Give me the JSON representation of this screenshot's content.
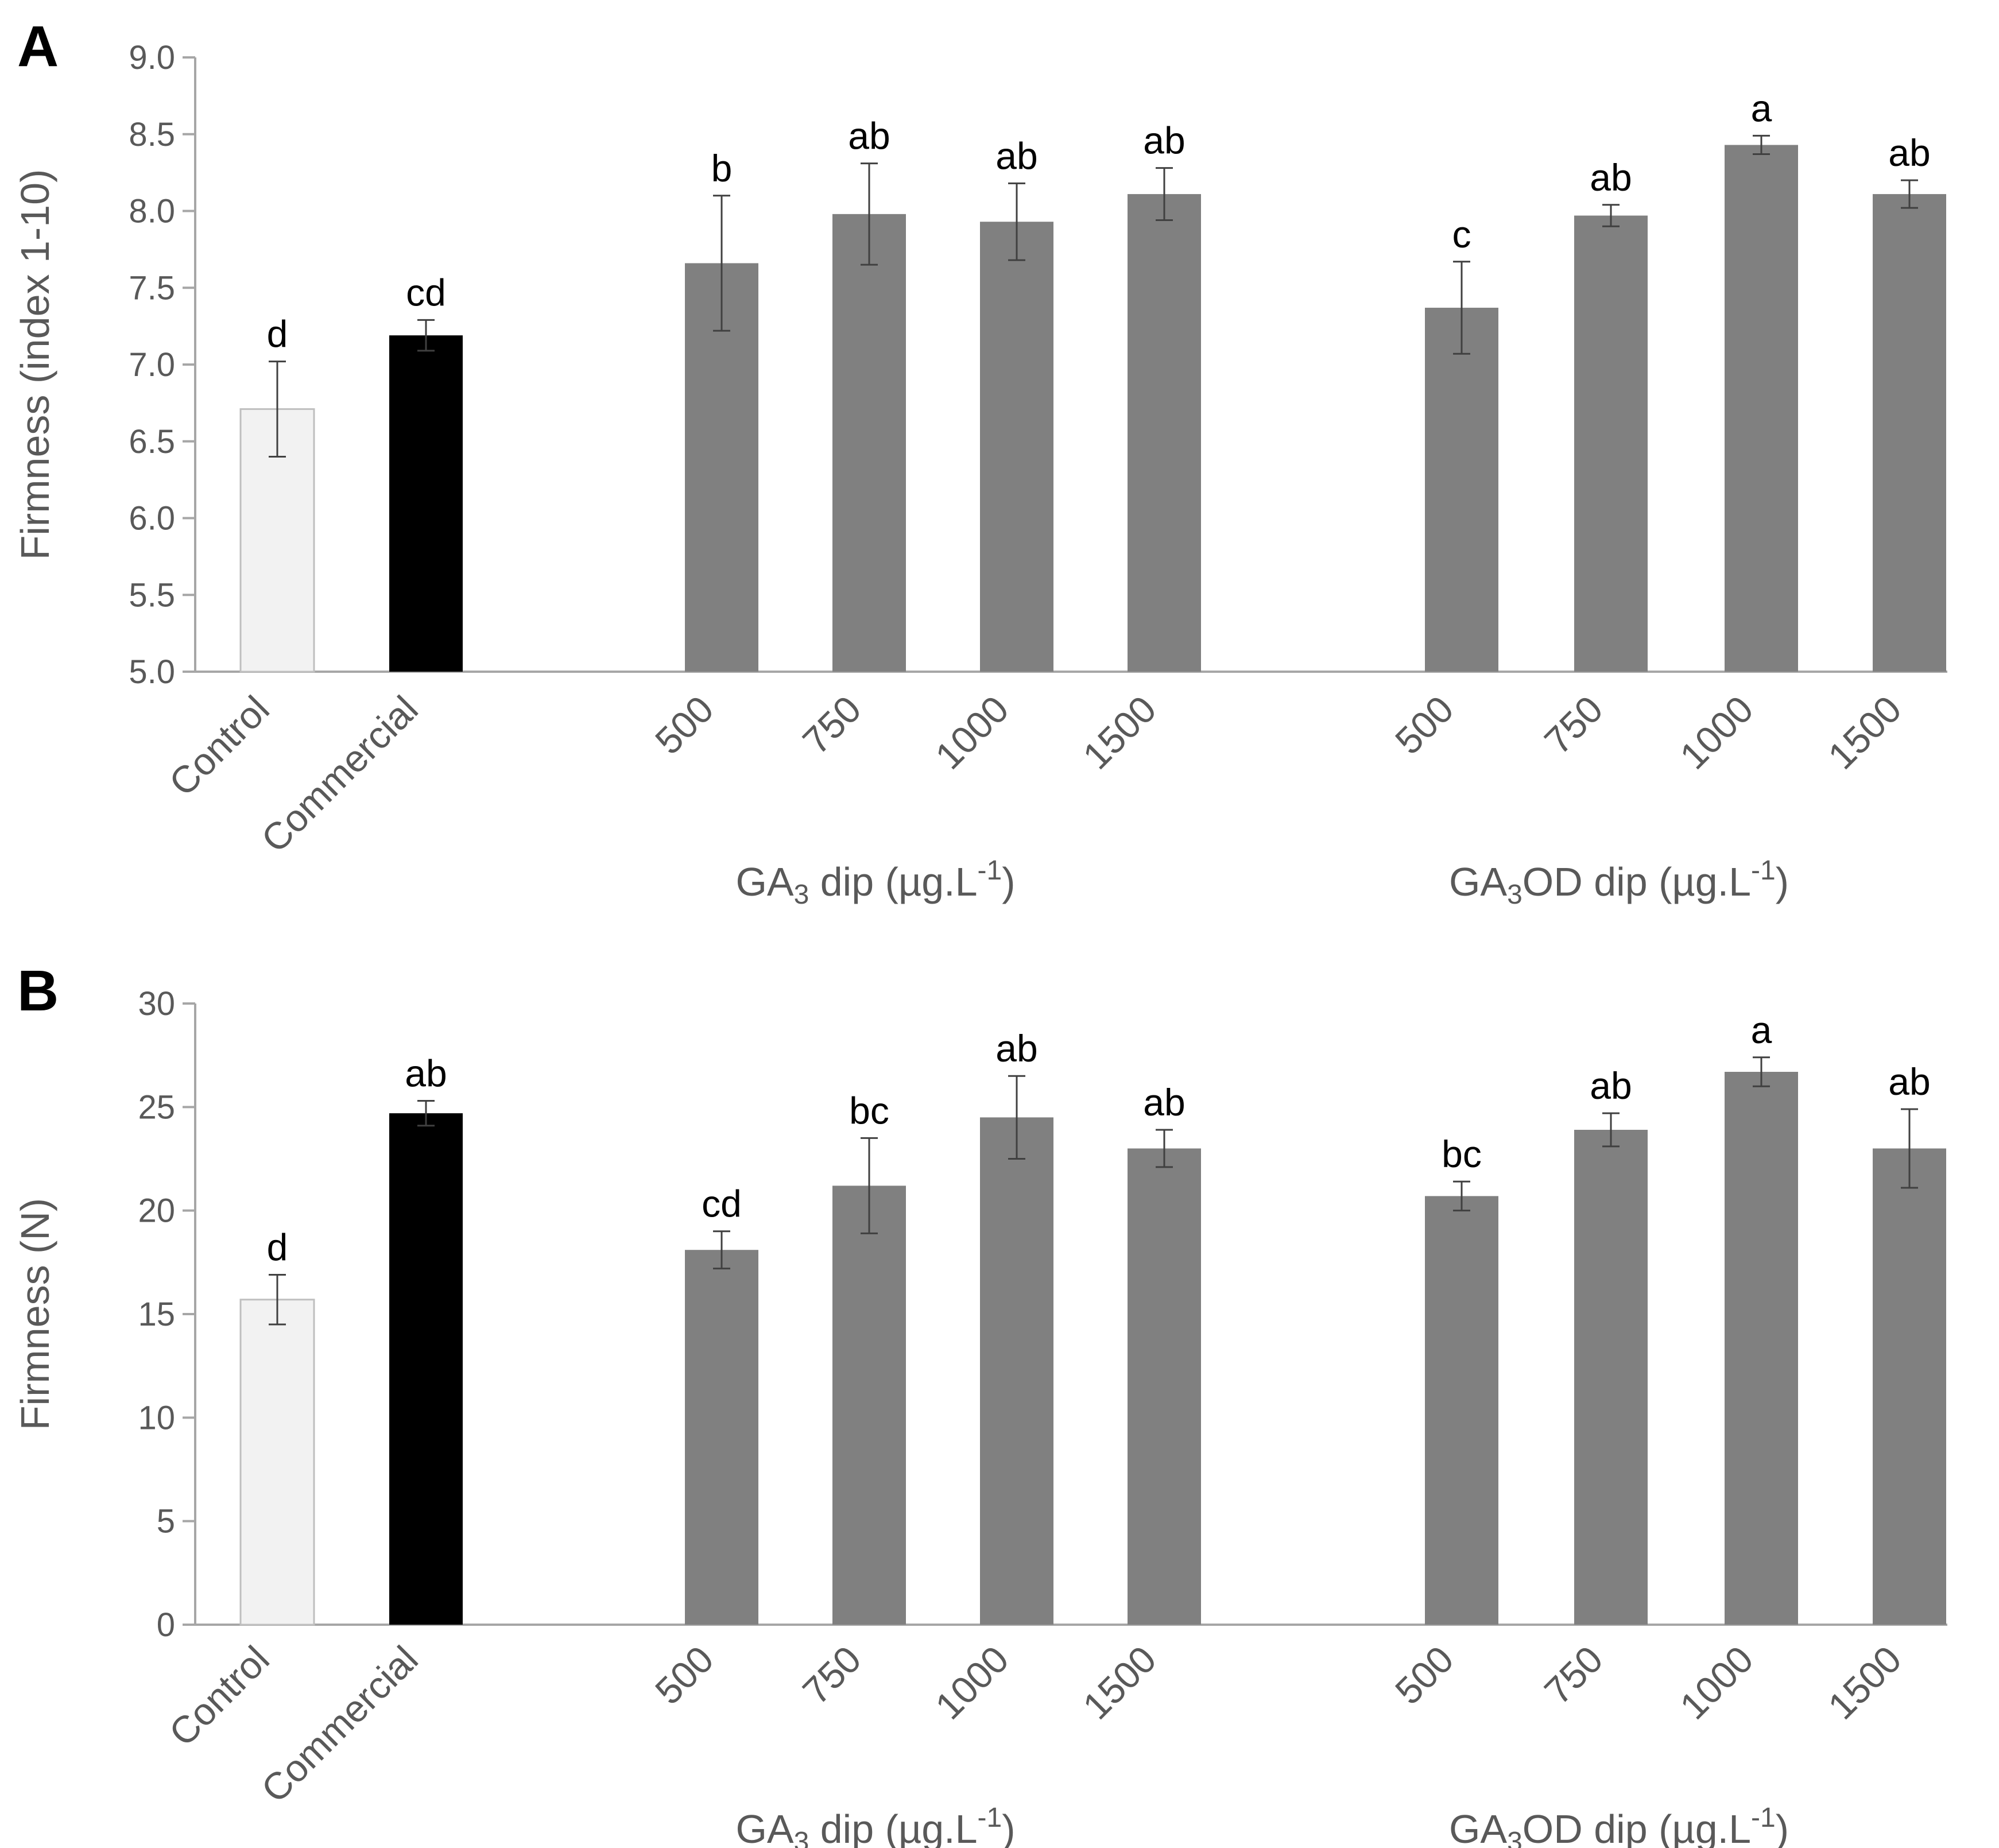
{
  "chart_data": [
    {
      "panel": "A",
      "type": "bar",
      "ylabel": "Firmness (index 1-10)",
      "ylim": [
        5.0,
        9.0
      ],
      "yticks": [
        "5.0",
        "5.5",
        "6.0",
        "6.5",
        "7.0",
        "7.5",
        "8.0",
        "8.5",
        "9.0"
      ],
      "grid": false,
      "categories": [
        "Control",
        "Commercial",
        "500",
        "750",
        "1000",
        "1500",
        "500",
        "750",
        "1000",
        "1500"
      ],
      "values": [
        6.71,
        7.19,
        7.66,
        7.98,
        7.93,
        8.11,
        7.37,
        7.97,
        8.43,
        8.11
      ],
      "errors": [
        0.31,
        0.1,
        0.44,
        0.33,
        0.25,
        0.17,
        0.3,
        0.07,
        0.06,
        0.09
      ],
      "significance": [
        "d",
        "cd",
        "b",
        "ab",
        "ab",
        "ab",
        "c",
        "ab",
        "a",
        "ab"
      ],
      "colors": [
        "#f2f2f2",
        "#000000",
        "#808080",
        "#808080",
        "#808080",
        "#808080",
        "#808080",
        "#808080",
        "#808080",
        "#808080"
      ],
      "groups": [
        {
          "base": "GA",
          "sub": "3",
          "rest": " dip (µg.L",
          "sup": "-1",
          "end": ")"
        },
        {
          "base": "GA",
          "sub": "3",
          "rest": "OD dip (µg.L",
          "sup": "-1",
          "end": ")"
        }
      ]
    },
    {
      "panel": "B",
      "type": "bar",
      "ylabel": "Firmness (N)",
      "ylim": [
        0,
        30
      ],
      "yticks": [
        "0",
        "5",
        "10",
        "15",
        "20",
        "25",
        "30"
      ],
      "grid": false,
      "categories": [
        "Control",
        "Commercial",
        "500",
        "750",
        "1000",
        "1500",
        "500",
        "750",
        "1000",
        "1500"
      ],
      "values": [
        15.7,
        24.7,
        18.1,
        21.2,
        24.5,
        23.0,
        20.7,
        23.9,
        26.7,
        23.0
      ],
      "errors": [
        1.2,
        0.6,
        0.9,
        2.3,
        2.0,
        0.9,
        0.7,
        0.8,
        0.7,
        1.9
      ],
      "significance": [
        "d",
        "ab",
        "cd",
        "bc",
        "ab",
        "ab",
        "bc",
        "ab",
        "a",
        "ab"
      ],
      "colors": [
        "#f2f2f2",
        "#000000",
        "#808080",
        "#808080",
        "#808080",
        "#808080",
        "#808080",
        "#808080",
        "#808080",
        "#808080"
      ],
      "groups": [
        {
          "base": "GA",
          "sub": "3",
          "rest": " dip (µg.L",
          "sup": "-1",
          "end": ")"
        },
        {
          "base": "GA",
          "sub": "3",
          "rest": "OD dip (µg.L",
          "sup": "-1",
          "end": ")"
        }
      ]
    }
  ]
}
